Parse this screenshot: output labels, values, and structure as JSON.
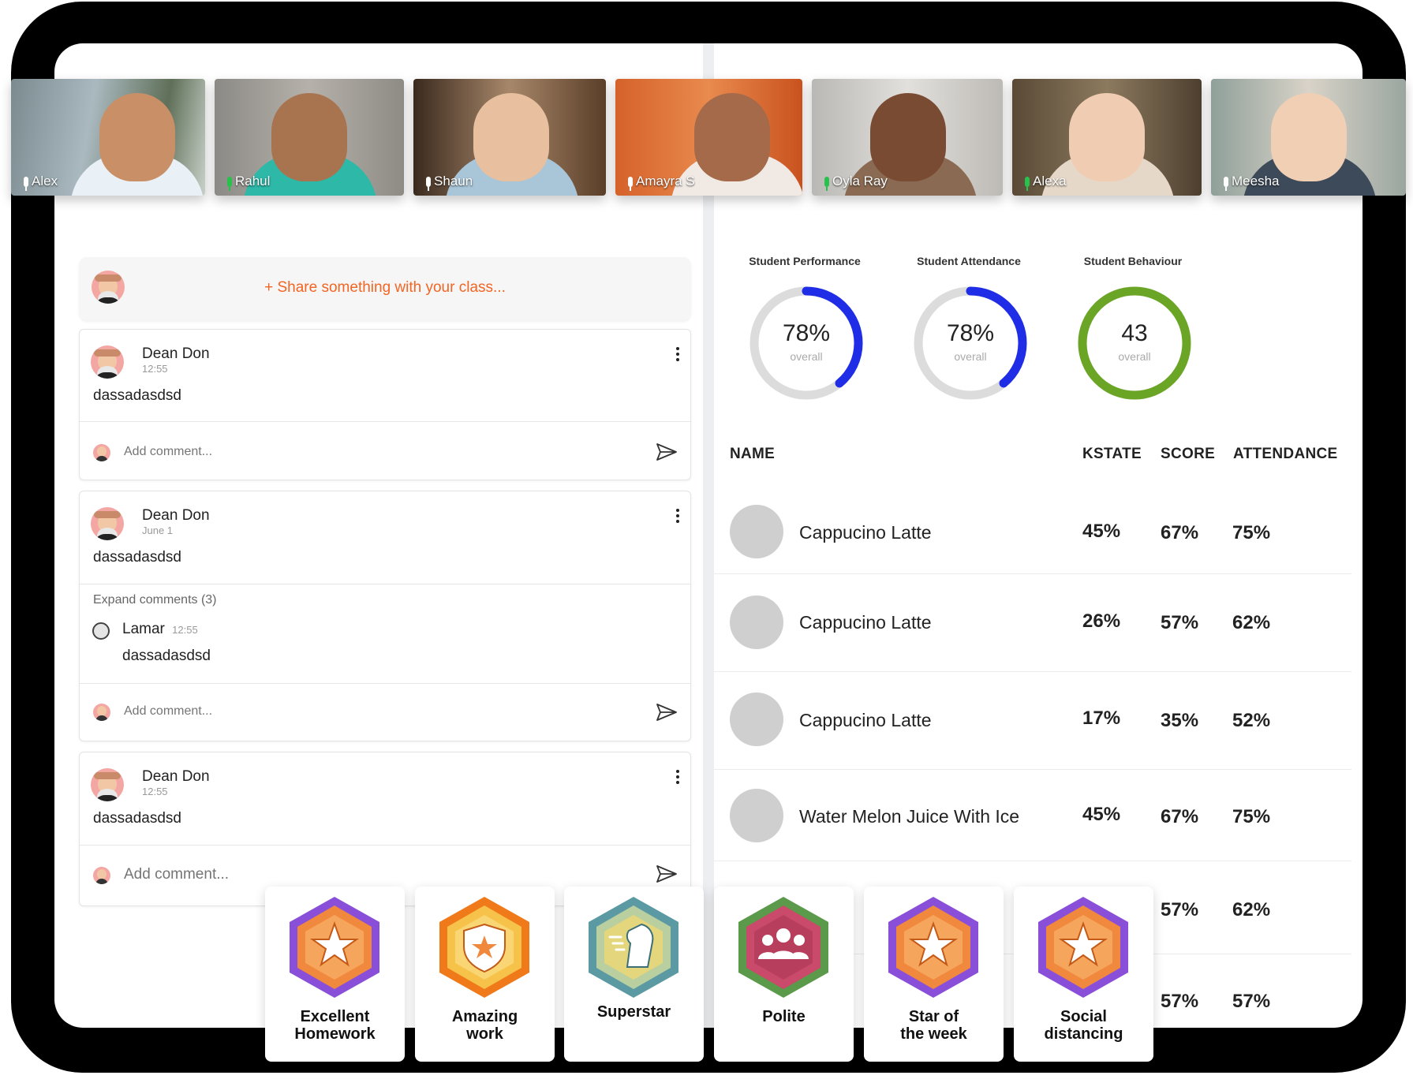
{
  "participants": [
    {
      "name": "Alex",
      "mic": "off"
    },
    {
      "name": "Rahul",
      "mic": "on"
    },
    {
      "name": "Shaun",
      "mic": "off"
    },
    {
      "name": "Amayra S",
      "mic": "off"
    },
    {
      "name": "Oyla Ray",
      "mic": "on"
    },
    {
      "name": "Alexa",
      "mic": "on"
    },
    {
      "name": "Meesha",
      "mic": "off"
    }
  ],
  "share": {
    "prompt": "+ Share something with your class..."
  },
  "posts": [
    {
      "author": "Dean Don",
      "time": "12:55",
      "body": "dassadasdsd",
      "comment_placeholder": "Add comment..."
    },
    {
      "author": "Dean Don",
      "time": "June 1",
      "body": "dassadasdsd",
      "expand_label": "Expand comments (3)",
      "comment": {
        "author": "Lamar",
        "time": "12:55",
        "body": "dassadasdsd"
      },
      "comment_placeholder": "Add comment..."
    },
    {
      "author": "Dean Don",
      "time": "12:55",
      "body": "dassadasdsd",
      "comment_placeholder": "Add comment..."
    }
  ],
  "gauges": [
    {
      "title": "Student Performance",
      "value": "78%",
      "sub": "overall",
      "fraction": 0.39,
      "color": "#1f2ee6"
    },
    {
      "title": "Student Attendance",
      "value": "78%",
      "sub": "overall",
      "fraction": 0.39,
      "color": "#1f2ee6"
    },
    {
      "title": "Student Behaviour",
      "value": "43",
      "sub": "overall",
      "fraction": 1.0,
      "color": "#6aa526"
    }
  ],
  "table": {
    "headers": {
      "name": "NAME",
      "kstate": "KSTATE",
      "score": "SCORE",
      "attendance": "ATTENDANCE"
    },
    "rows": [
      {
        "name": "Cappucino Latte",
        "kstate": "45%",
        "score": "67%",
        "attendance": "75%"
      },
      {
        "name": "Cappucino Latte",
        "kstate": "26%",
        "score": "57%",
        "attendance": "62%"
      },
      {
        "name": "Cappucino Latte",
        "kstate": "17%",
        "score": "35%",
        "attendance": "52%"
      },
      {
        "name": "Water Melon Juice With Ice",
        "kstate": "45%",
        "score": "67%",
        "attendance": "75%"
      },
      {
        "score": "57%",
        "attendance": "62%"
      },
      {
        "score": "57%",
        "attendance": "57%"
      }
    ]
  },
  "badges": [
    {
      "line1": "Excellent",
      "line2": "Homework",
      "icon": "star-icon"
    },
    {
      "line1": "Amazing",
      "line2": "work",
      "icon": "shield-star-icon"
    },
    {
      "line1": "Superstar",
      "line2": "",
      "icon": "horse-icon"
    },
    {
      "line1": "Polite",
      "line2": "",
      "icon": "group-icon"
    },
    {
      "line1": "Star of",
      "line2": "the week",
      "icon": "star-icon"
    },
    {
      "line1": "Social",
      "line2": "distancing",
      "icon": "star-icon"
    }
  ]
}
